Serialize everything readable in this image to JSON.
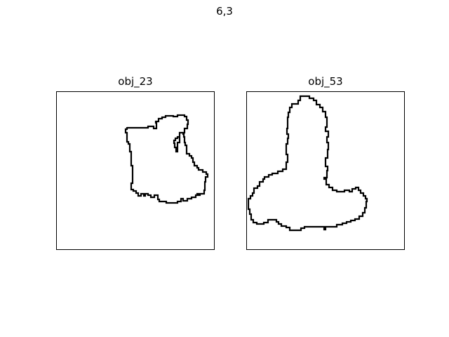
{
  "figure": {
    "title": "6,3"
  },
  "panels": [
    {
      "title": "obj_23"
    },
    {
      "title": "obj_53"
    }
  ],
  "colors": {
    "outline": "#000000",
    "frame": "#000000",
    "background": "#ffffff"
  }
}
